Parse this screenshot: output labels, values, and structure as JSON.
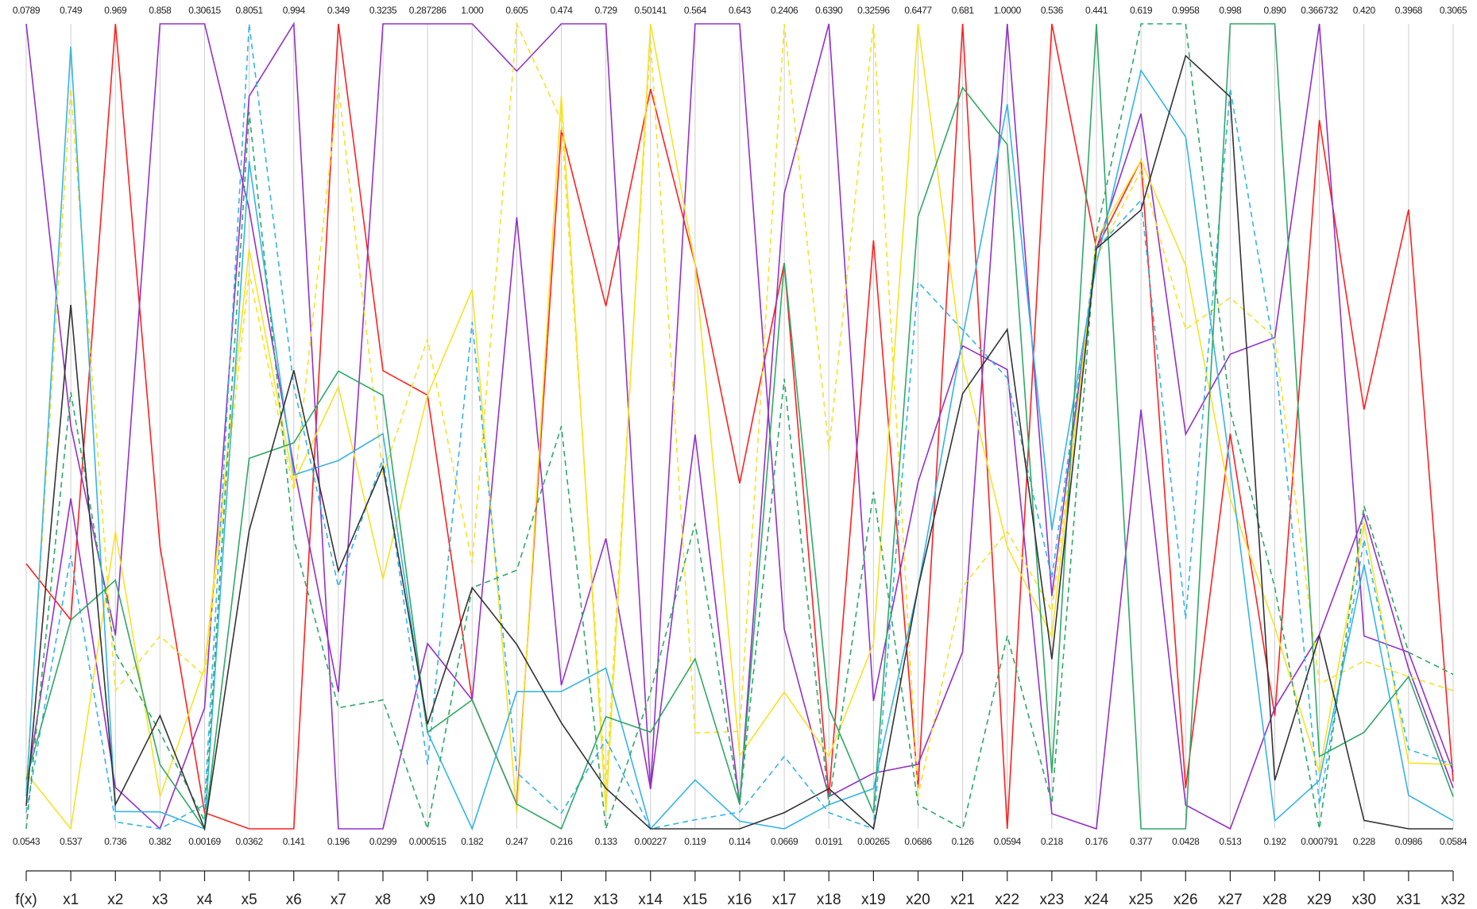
{
  "chart_data": {
    "type": "parallel",
    "categories": [
      "f(x)",
      "x1",
      "x2",
      "x3",
      "x4",
      "x5",
      "x6",
      "x7",
      "x8",
      "x9",
      "x10",
      "x11",
      "x12",
      "x13",
      "x14",
      "x15",
      "x16",
      "x17",
      "x18",
      "x19",
      "x20",
      "x21",
      "x22",
      "x23",
      "x24",
      "x25",
      "x26",
      "x27",
      "x28",
      "x29",
      "x30",
      "x31",
      "x32"
    ],
    "ylims": [
      [
        0.0543,
        0.0789
      ],
      [
        0.537,
        0.749
      ],
      [
        0.736,
        0.969
      ],
      [
        0.382,
        0.858
      ],
      [
        0.00169,
        0.30615
      ],
      [
        0.0362,
        0.8051
      ],
      [
        0.141,
        0.994
      ],
      [
        0.196,
        0.349
      ],
      [
        0.0299,
        0.3235
      ],
      [
        0.000515,
        0.287286
      ],
      [
        0.182,
        {
          "value": 1,
          "label": "1.000"
        }
      ],
      [
        0.247,
        0.605
      ],
      [
        0.216,
        0.474
      ],
      [
        0.133,
        0.729
      ],
      [
        0.00227,
        0.50141
      ],
      [
        0.119,
        0.564
      ],
      [
        0.114,
        0.643
      ],
      [
        0.0669,
        0.2406
      ],
      [
        0.0191,
        {
          "value": 0.639,
          "label": "0.6390"
        }
      ],
      [
        0.00265,
        0.32596
      ],
      [
        0.0686,
        0.6477
      ],
      [
        0.126,
        0.681
      ],
      [
        0.0594,
        {
          "value": 1,
          "label": "1.0000"
        }
      ],
      [
        0.218,
        0.536
      ],
      [
        0.176,
        0.441
      ],
      [
        0.377,
        0.619
      ],
      [
        0.0428,
        0.9958
      ],
      [
        0.513,
        0.998
      ],
      [
        0.192,
        {
          "value": 0.89,
          "label": "0.890"
        }
      ],
      [
        0.000791,
        0.366732
      ],
      [
        0.228,
        {
          "value": 0.42,
          "label": "0.420"
        }
      ],
      [
        0.0986,
        0.3968
      ],
      [
        0.0584,
        0.3065
      ]
    ],
    "series": [
      {
        "color": "#ff2020",
        "dashed": false,
        "values": [
          0.0624,
          0.592,
          0.969,
          0.549,
          0.0078,
          0.0362,
          0.141,
          0.349,
          0.197,
          0.155,
          0.313,
          0.258,
          0.44,
          0.52,
          0.461,
          0.431,
          0.341,
          0.189,
          0.044,
          0.239,
          0.098,
          0.681,
          0.0594,
          0.536,
          0.367,
          0.578,
          0.091,
          0.751,
          0.29,
          0.323,
          0.328,
          0.328,
          0.073
        ]
      },
      {
        "color": "#9430c8",
        "dashed": false,
        "values": [
          0.0789,
          0.643,
          0.792,
          0.858,
          0.30615,
          0.628,
          0.525,
          0.222,
          0.3235,
          0.287286,
          1,
          0.584,
          0.474,
          0.729,
          0.027,
          0.337,
          0.13,
          0.204,
          0.639,
          0.054,
          0.318,
          0.459,
          0.596,
          0.224,
          0.176,
          0.503,
          0.071,
          0.513,
          0.297,
          0.089,
          0.303,
          0.158,
          0.071
        ]
      },
      {
        "color": "#9430c8",
        "dashed": false,
        "values": [
          0.0555,
          0.624,
          0.748,
          0.382,
          0.0474,
          0.736,
          0.994,
          0.196,
          0.0299,
          0.0665,
          0.313,
          0.519,
          0.262,
          0.348,
          0.027,
          0.564,
          0.643,
          0.11,
          0.044,
          0.025,
          0.115,
          0.248,
          1,
          0.31,
          0.367,
          0.592,
          0.51,
          0.799,
          0.618,
          0.366732,
          0.274,
          0.164,
          0.076
        ]
      },
      {
        "color": "#f7e227",
        "dashed": false,
        "values": [
          0.056,
          0.537,
          0.822,
          0.401,
          0.0626,
          0.59,
          0.508,
          0.28,
          0.121,
          0.155,
          0.73,
          0.254,
          0.451,
          0.145,
          0.50141,
          0.431,
          0.162,
          0.0964,
          0.075,
          0.077,
          0.6477,
          0.448,
          0.389,
          0.294,
          0.37,
          0.578,
          0.71,
          0.712,
          0.367,
          0.0264,
          0.301,
          0.123,
          0.0782
        ]
      },
      {
        "color": "#f7e227",
        "dashed": true,
        "values": [
          0.0555,
          0.732,
          0.776,
          0.496,
          0.0595,
          0.567,
          0.499,
          0.337,
          0.159,
          0.175,
          0.452,
          0.605,
          0.443,
          0.163,
          0.491,
          0.172,
          0.178,
          0.2406,
          0.311,
          0.32596,
          0.092,
          0.293,
          0.407,
          0.304,
          0.364,
          0.575,
          0.634,
          0.833,
          0.618,
          0.0667,
          0.268,
          0.155,
          0.101
        ]
      },
      {
        "color": "#35b4e8",
        "dashed": false,
        "values": [
          0.0553,
          0.743,
          0.741,
          0.392,
          0.00169,
          0.674,
          0.516,
          0.266,
          0.174,
          0.0349,
          0.182,
          0.308,
          0.26,
          0.252,
          0.00227,
          0.146,
          0.119,
          0.0669,
          0.0377,
          0.0188,
          0.242,
          0.465,
          0.906,
          0.336,
          0.362,
          0.605,
          0.862,
          0.731,
          0.199,
          0.0228,
          0.291,
          0.111,
          0.0609
        ]
      },
      {
        "color": "#35b4e8",
        "dashed": true,
        "values": [
          0.0548,
          0.609,
          0.738,
          0.382,
          0.0108,
          0.8051,
          0.61,
          0.242,
          0.165,
          0.0234,
          0.697,
          0.272,
          0.221,
          0.199,
          0.00227,
          0.124,
          0.125,
          0.0825,
          0.0315,
          0.00265,
          0.462,
          0.47,
          0.586,
          0.317,
          0.367,
          0.566,
          0.291,
          0.959,
          0.604,
          0.0118,
          0.297,
          0.128,
          0.0782
        ]
      },
      {
        "color": "#2fa866",
        "dashed": false,
        "values": [
          0.0558,
          0.592,
          0.808,
          0.42,
          0.00169,
          0.39,
          0.55,
          0.283,
          0.188,
          0.0349,
          0.313,
          0.258,
          0.216,
          0.216,
          0.0622,
          0.213,
          0.13,
          0.189,
          0.112,
          0.0091,
          0.509,
          0.637,
          0.859,
          0.24,
          0.441,
          0.377,
          0.0428,
          0.998,
          0.89,
          0.0337,
          0.251,
          0.155,
          0.0683
        ]
      },
      {
        "color": "#2fa866",
        "dashed": true,
        "values": [
          0.0543,
          0.652,
          0.787,
          0.439,
          0.0047,
          0.721,
          0.448,
          0.219,
          0.0769,
          0.000515,
          0.427,
          0.362,
          0.345,
          0.133,
          0.0871,
          0.288,
          0.13,
          0.164,
          0.0377,
          0.138,
          0.086,
          0.126,
          0.285,
          0.228,
          0.372,
          0.619,
          0.9958,
          0.765,
          0.401,
          0.000791,
          0.305,
          0.164,
          0.106
        ]
      },
      {
        "color": "#333333",
        "dashed": false,
        "values": [
          0.055,
          0.675,
          0.743,
          0.449,
          0.00169,
          0.321,
          0.627,
          0.245,
          0.162,
          0.0378,
          0.427,
          0.329,
          0.25,
          0.163,
          0.00227,
          0.119,
          0.114,
          0.0704,
          0.0501,
          0.00265,
          0.242,
          0.426,
          0.643,
          0.285,
          0.367,
          0.563,
          0.958,
          0.954,
          0.234,
          0.0886,
          0.23,
          0.0986,
          0.0584
        ]
      }
    ]
  }
}
